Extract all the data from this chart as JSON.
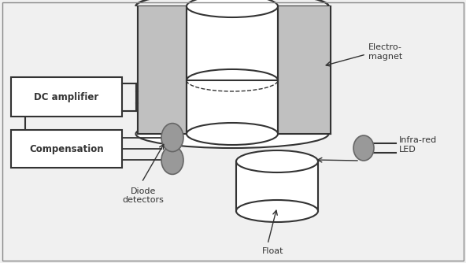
{
  "bg_color": "#f0f0f0",
  "white": "#ffffff",
  "dark": "#333333",
  "mid_gray": "#999999",
  "hatch_gray": "#aaaaaa",
  "dc_amp_label": "DC amplifier",
  "comp_label": "Compensation",
  "em_label": "Electro-\nmagnet",
  "float_label": "Float",
  "diode_label": "Diode\ndetectors",
  "ir_label": "Infra-red\nLED",
  "figw": 5.92,
  "figh": 3.34,
  "dpi": 100
}
